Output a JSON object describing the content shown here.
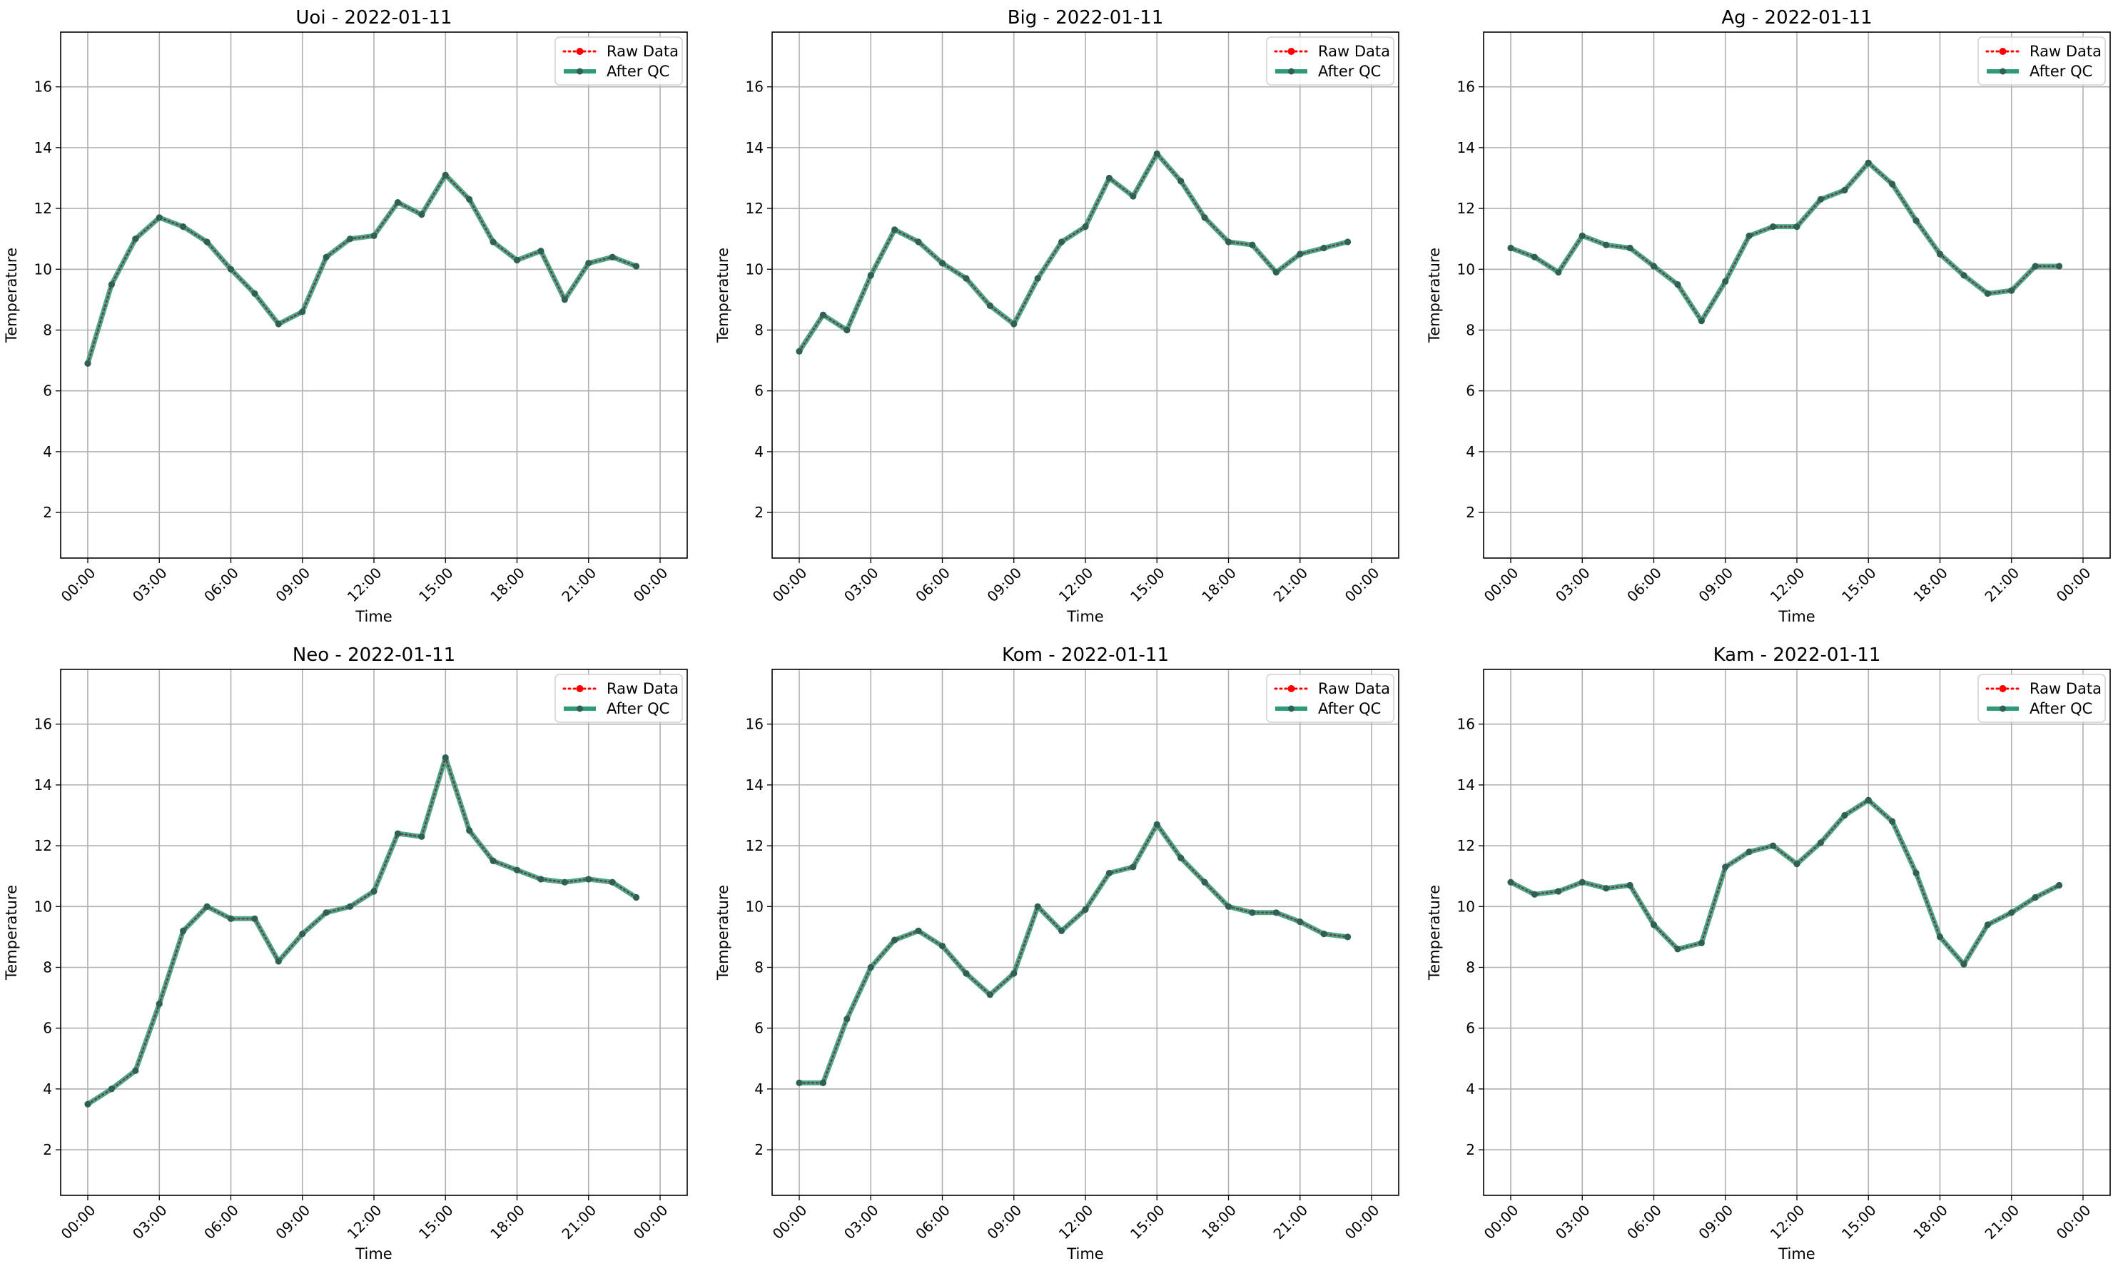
{
  "figure": {
    "legend_placement": "top-right",
    "grid": true,
    "colors": {
      "raw": "#ff0000",
      "qc": "#2e9a78",
      "marker": "#2f5f55",
      "grid": "#b0b0b0"
    }
  },
  "chart_data": [
    {
      "type": "line",
      "title": "Uoi - 2022-01-11",
      "xlabel": "Time",
      "ylabel": "Temperature",
      "x": [
        "00:00",
        "01:00",
        "02:00",
        "03:00",
        "04:00",
        "05:00",
        "06:00",
        "07:00",
        "08:00",
        "09:00",
        "10:00",
        "11:00",
        "12:00",
        "13:00",
        "14:00",
        "15:00",
        "16:00",
        "17:00",
        "18:00",
        "19:00",
        "20:00",
        "21:00",
        "22:00",
        "23:00"
      ],
      "xlim": [
        "00:00",
        "24:00"
      ],
      "xticks": [
        "00:00",
        "03:00",
        "06:00",
        "09:00",
        "12:00",
        "15:00",
        "18:00",
        "21:00",
        "00:00"
      ],
      "ylim": [
        0.5,
        17.8
      ],
      "yticks": [
        2,
        4,
        6,
        8,
        10,
        12,
        14,
        16
      ],
      "series": [
        {
          "name": "Raw Data",
          "values": [
            6.9,
            9.5,
            11.0,
            11.7,
            11.4,
            10.9,
            10.0,
            9.2,
            8.2,
            8.6,
            10.4,
            11.0,
            11.1,
            12.2,
            11.8,
            13.1,
            12.3,
            10.9,
            10.3,
            10.6,
            9.0,
            10.2,
            10.4,
            10.1
          ]
        },
        {
          "name": "After QC",
          "values": [
            6.9,
            9.5,
            11.0,
            11.7,
            11.4,
            10.9,
            10.0,
            9.2,
            8.2,
            8.6,
            10.4,
            11.0,
            11.1,
            12.2,
            11.8,
            13.1,
            12.3,
            10.9,
            10.3,
            10.6,
            9.0,
            10.2,
            10.4,
            10.1
          ]
        }
      ]
    },
    {
      "type": "line",
      "title": "Big - 2022-01-11",
      "xlabel": "Time",
      "ylabel": "Temperature",
      "x": [
        "00:00",
        "01:00",
        "02:00",
        "03:00",
        "04:00",
        "05:00",
        "06:00",
        "07:00",
        "08:00",
        "09:00",
        "10:00",
        "11:00",
        "12:00",
        "13:00",
        "14:00",
        "15:00",
        "16:00",
        "17:00",
        "18:00",
        "19:00",
        "20:00",
        "21:00",
        "22:00",
        "23:00"
      ],
      "xlim": [
        "00:00",
        "24:00"
      ],
      "xticks": [
        "00:00",
        "03:00",
        "06:00",
        "09:00",
        "12:00",
        "15:00",
        "18:00",
        "21:00",
        "00:00"
      ],
      "ylim": [
        0.5,
        17.8
      ],
      "yticks": [
        2,
        4,
        6,
        8,
        10,
        12,
        14,
        16
      ],
      "series": [
        {
          "name": "Raw Data",
          "values": [
            7.3,
            8.5,
            8.0,
            9.8,
            11.3,
            10.9,
            10.2,
            9.7,
            8.8,
            8.2,
            9.7,
            10.9,
            11.4,
            13.0,
            12.4,
            13.8,
            12.9,
            11.7,
            10.9,
            10.8,
            9.9,
            10.5,
            10.7,
            10.9
          ]
        },
        {
          "name": "After QC",
          "values": [
            7.3,
            8.5,
            8.0,
            9.8,
            11.3,
            10.9,
            10.2,
            9.7,
            8.8,
            8.2,
            9.7,
            10.9,
            11.4,
            13.0,
            12.4,
            13.8,
            12.9,
            11.7,
            10.9,
            10.8,
            9.9,
            10.5,
            10.7,
            10.9
          ]
        }
      ]
    },
    {
      "type": "line",
      "title": "Ag - 2022-01-11",
      "xlabel": "Time",
      "ylabel": "Temperature",
      "x": [
        "00:00",
        "01:00",
        "02:00",
        "03:00",
        "04:00",
        "05:00",
        "06:00",
        "07:00",
        "08:00",
        "09:00",
        "10:00",
        "11:00",
        "12:00",
        "13:00",
        "14:00",
        "15:00",
        "16:00",
        "17:00",
        "18:00",
        "19:00",
        "20:00",
        "21:00",
        "22:00",
        "23:00"
      ],
      "xlim": [
        "00:00",
        "24:00"
      ],
      "xticks": [
        "00:00",
        "03:00",
        "06:00",
        "09:00",
        "12:00",
        "15:00",
        "18:00",
        "21:00",
        "00:00"
      ],
      "ylim": [
        0.5,
        17.8
      ],
      "yticks": [
        2,
        4,
        6,
        8,
        10,
        12,
        14,
        16
      ],
      "series": [
        {
          "name": "Raw Data",
          "values": [
            10.7,
            10.4,
            9.9,
            11.1,
            10.8,
            10.7,
            10.1,
            9.5,
            8.3,
            9.6,
            11.1,
            11.4,
            11.4,
            12.3,
            12.6,
            13.5,
            12.8,
            11.6,
            10.5,
            9.8,
            9.2,
            9.3,
            10.1,
            10.1
          ]
        },
        {
          "name": "After QC",
          "values": [
            10.7,
            10.4,
            9.9,
            11.1,
            10.8,
            10.7,
            10.1,
            9.5,
            8.3,
            9.6,
            11.1,
            11.4,
            11.4,
            12.3,
            12.6,
            13.5,
            12.8,
            11.6,
            10.5,
            9.8,
            9.2,
            9.3,
            10.1,
            10.1
          ]
        }
      ]
    },
    {
      "type": "line",
      "title": "Neo - 2022-01-11",
      "xlabel": "Time",
      "ylabel": "Temperature",
      "x": [
        "00:00",
        "01:00",
        "02:00",
        "03:00",
        "04:00",
        "05:00",
        "06:00",
        "07:00",
        "08:00",
        "09:00",
        "10:00",
        "11:00",
        "12:00",
        "13:00",
        "14:00",
        "15:00",
        "16:00",
        "17:00",
        "18:00",
        "19:00",
        "20:00",
        "21:00",
        "22:00",
        "23:00"
      ],
      "xlim": [
        "00:00",
        "24:00"
      ],
      "xticks": [
        "00:00",
        "03:00",
        "06:00",
        "09:00",
        "12:00",
        "15:00",
        "18:00",
        "21:00",
        "00:00"
      ],
      "ylim": [
        0.5,
        17.8
      ],
      "yticks": [
        2,
        4,
        6,
        8,
        10,
        12,
        14,
        16
      ],
      "series": [
        {
          "name": "Raw Data",
          "values": [
            3.5,
            4.0,
            4.6,
            6.8,
            9.2,
            10.0,
            9.6,
            9.6,
            8.2,
            9.1,
            9.8,
            10.0,
            10.5,
            12.4,
            12.3,
            14.9,
            12.5,
            11.5,
            11.2,
            10.9,
            10.8,
            10.9,
            10.8,
            10.3
          ]
        },
        {
          "name": "After QC",
          "values": [
            3.5,
            4.0,
            4.6,
            6.8,
            9.2,
            10.0,
            9.6,
            9.6,
            8.2,
            9.1,
            9.8,
            10.0,
            10.5,
            12.4,
            12.3,
            14.9,
            12.5,
            11.5,
            11.2,
            10.9,
            10.8,
            10.9,
            10.8,
            10.3
          ]
        }
      ]
    },
    {
      "type": "line",
      "title": "Kom - 2022-01-11",
      "xlabel": "Time",
      "ylabel": "Temperature",
      "x": [
        "00:00",
        "01:00",
        "02:00",
        "03:00",
        "04:00",
        "05:00",
        "06:00",
        "07:00",
        "08:00",
        "09:00",
        "10:00",
        "11:00",
        "12:00",
        "13:00",
        "14:00",
        "15:00",
        "16:00",
        "17:00",
        "18:00",
        "19:00",
        "20:00",
        "21:00",
        "22:00",
        "23:00"
      ],
      "xlim": [
        "00:00",
        "24:00"
      ],
      "xticks": [
        "00:00",
        "03:00",
        "06:00",
        "09:00",
        "12:00",
        "15:00",
        "18:00",
        "21:00",
        "00:00"
      ],
      "ylim": [
        0.5,
        17.8
      ],
      "yticks": [
        2,
        4,
        6,
        8,
        10,
        12,
        14,
        16
      ],
      "series": [
        {
          "name": "Raw Data",
          "values": [
            4.2,
            4.2,
            6.3,
            8.0,
            8.9,
            9.2,
            8.7,
            7.8,
            7.1,
            7.8,
            10.0,
            9.2,
            9.9,
            11.1,
            11.3,
            12.7,
            11.6,
            10.8,
            10.0,
            9.8,
            9.8,
            9.5,
            9.1,
            9.0
          ]
        },
        {
          "name": "After QC",
          "values": [
            4.2,
            4.2,
            6.3,
            8.0,
            8.9,
            9.2,
            8.7,
            7.8,
            7.1,
            7.8,
            10.0,
            9.2,
            9.9,
            11.1,
            11.3,
            12.7,
            11.6,
            10.8,
            10.0,
            9.8,
            9.8,
            9.5,
            9.1,
            9.0
          ]
        }
      ]
    },
    {
      "type": "line",
      "title": "Kam - 2022-01-11",
      "xlabel": "Time",
      "ylabel": "Temperature",
      "x": [
        "00:00",
        "01:00",
        "02:00",
        "03:00",
        "04:00",
        "05:00",
        "06:00",
        "07:00",
        "08:00",
        "09:00",
        "10:00",
        "11:00",
        "12:00",
        "13:00",
        "14:00",
        "15:00",
        "16:00",
        "17:00",
        "18:00",
        "19:00",
        "20:00",
        "21:00",
        "22:00",
        "23:00"
      ],
      "xlim": [
        "00:00",
        "24:00"
      ],
      "xticks": [
        "00:00",
        "03:00",
        "06:00",
        "09:00",
        "12:00",
        "15:00",
        "18:00",
        "21:00",
        "00:00"
      ],
      "ylim": [
        0.5,
        17.8
      ],
      "yticks": [
        2,
        4,
        6,
        8,
        10,
        12,
        14,
        16
      ],
      "series": [
        {
          "name": "Raw Data",
          "values": [
            10.8,
            10.4,
            10.5,
            10.8,
            10.6,
            10.7,
            9.4,
            8.6,
            8.8,
            11.3,
            11.8,
            12.0,
            11.4,
            12.1,
            13.0,
            13.5,
            12.8,
            11.1,
            9.0,
            8.1,
            9.4,
            9.8,
            10.3,
            10.7
          ]
        },
        {
          "name": "After QC",
          "values": [
            10.8,
            10.4,
            10.5,
            10.8,
            10.6,
            10.7,
            9.4,
            8.6,
            8.8,
            11.3,
            11.8,
            12.0,
            11.4,
            12.1,
            13.0,
            13.5,
            12.8,
            11.1,
            9.0,
            8.1,
            9.4,
            9.8,
            10.3,
            10.7
          ]
        }
      ]
    }
  ]
}
